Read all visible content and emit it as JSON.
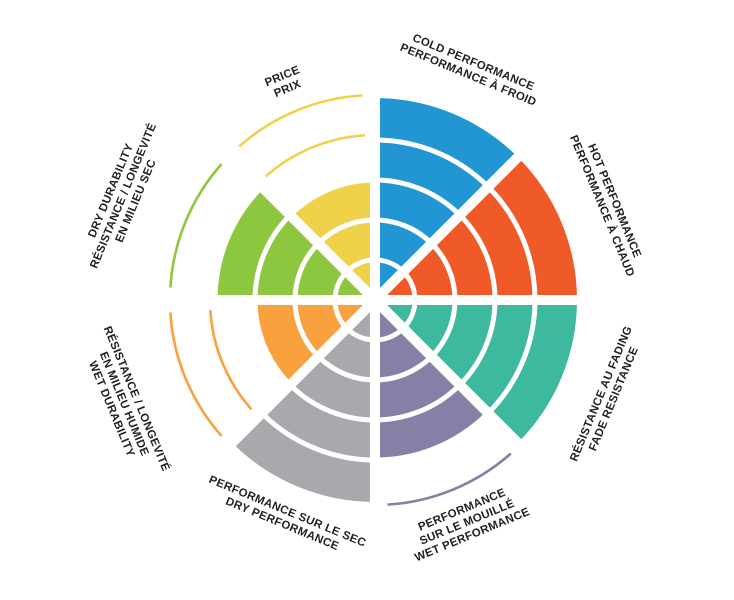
{
  "page": {
    "background": "#FFFFFF",
    "text_color": "#231F20",
    "separator_color": "#FFFFFF"
  },
  "chart_data": {
    "type": "radar",
    "title": "",
    "legend": "none",
    "grid": "concentric-rings-with-radial-spokes",
    "scale": {
      "min": 0,
      "max": 5,
      "rings": 5
    },
    "value_style": "filled wedge up to value; rings above value drawn as colored outline arcs",
    "sectors": [
      {
        "id": "cold-performance",
        "label_lines": [
          "COLD PERFORMANCE",
          "PERFORMANCE À FROID"
        ],
        "value": 5,
        "color": "#2196D3"
      },
      {
        "id": "hot-performance",
        "label_lines": [
          "HOT PERFORMANCE",
          "PERFORMANCE À CHAUD"
        ],
        "value": 5,
        "color": "#F05A28"
      },
      {
        "id": "fade-resistance",
        "label_lines": [
          "RÉSISTANCE AU FADING",
          "FADE RESISTANCE"
        ],
        "value": 5,
        "color": "#3CB99F"
      },
      {
        "id": "wet-performance",
        "label_lines": [
          "PERFORMANCE",
          "SUR LE MOUILLÉ",
          "WET PERFORMANCE"
        ],
        "value": 4,
        "color": "#867FA6"
      },
      {
        "id": "dry-performance",
        "label_lines": [
          "PERFORMANCE SUR LE SEC",
          "DRY PERFORMANCE"
        ],
        "value": 5,
        "color": "#A7A9AC"
      },
      {
        "id": "wet-durability",
        "label_lines": [
          "RÉSISTANCE / LONGEVITÉ",
          "EN MILIEU HUMIDE",
          "WET DURABILITY"
        ],
        "value": 3,
        "color": "#F8A13E"
      },
      {
        "id": "dry-durability",
        "label_lines": [
          "DRY DURABILITY",
          "RÉSISTANCE / LONGEVITÉ",
          "EN MILIEU SEC"
        ],
        "value": 4,
        "color": "#8DC63F"
      },
      {
        "id": "price",
        "label_lines": [
          "PRICE",
          "PRIX"
        ],
        "value": 3,
        "color": "#F0D14A"
      }
    ]
  }
}
